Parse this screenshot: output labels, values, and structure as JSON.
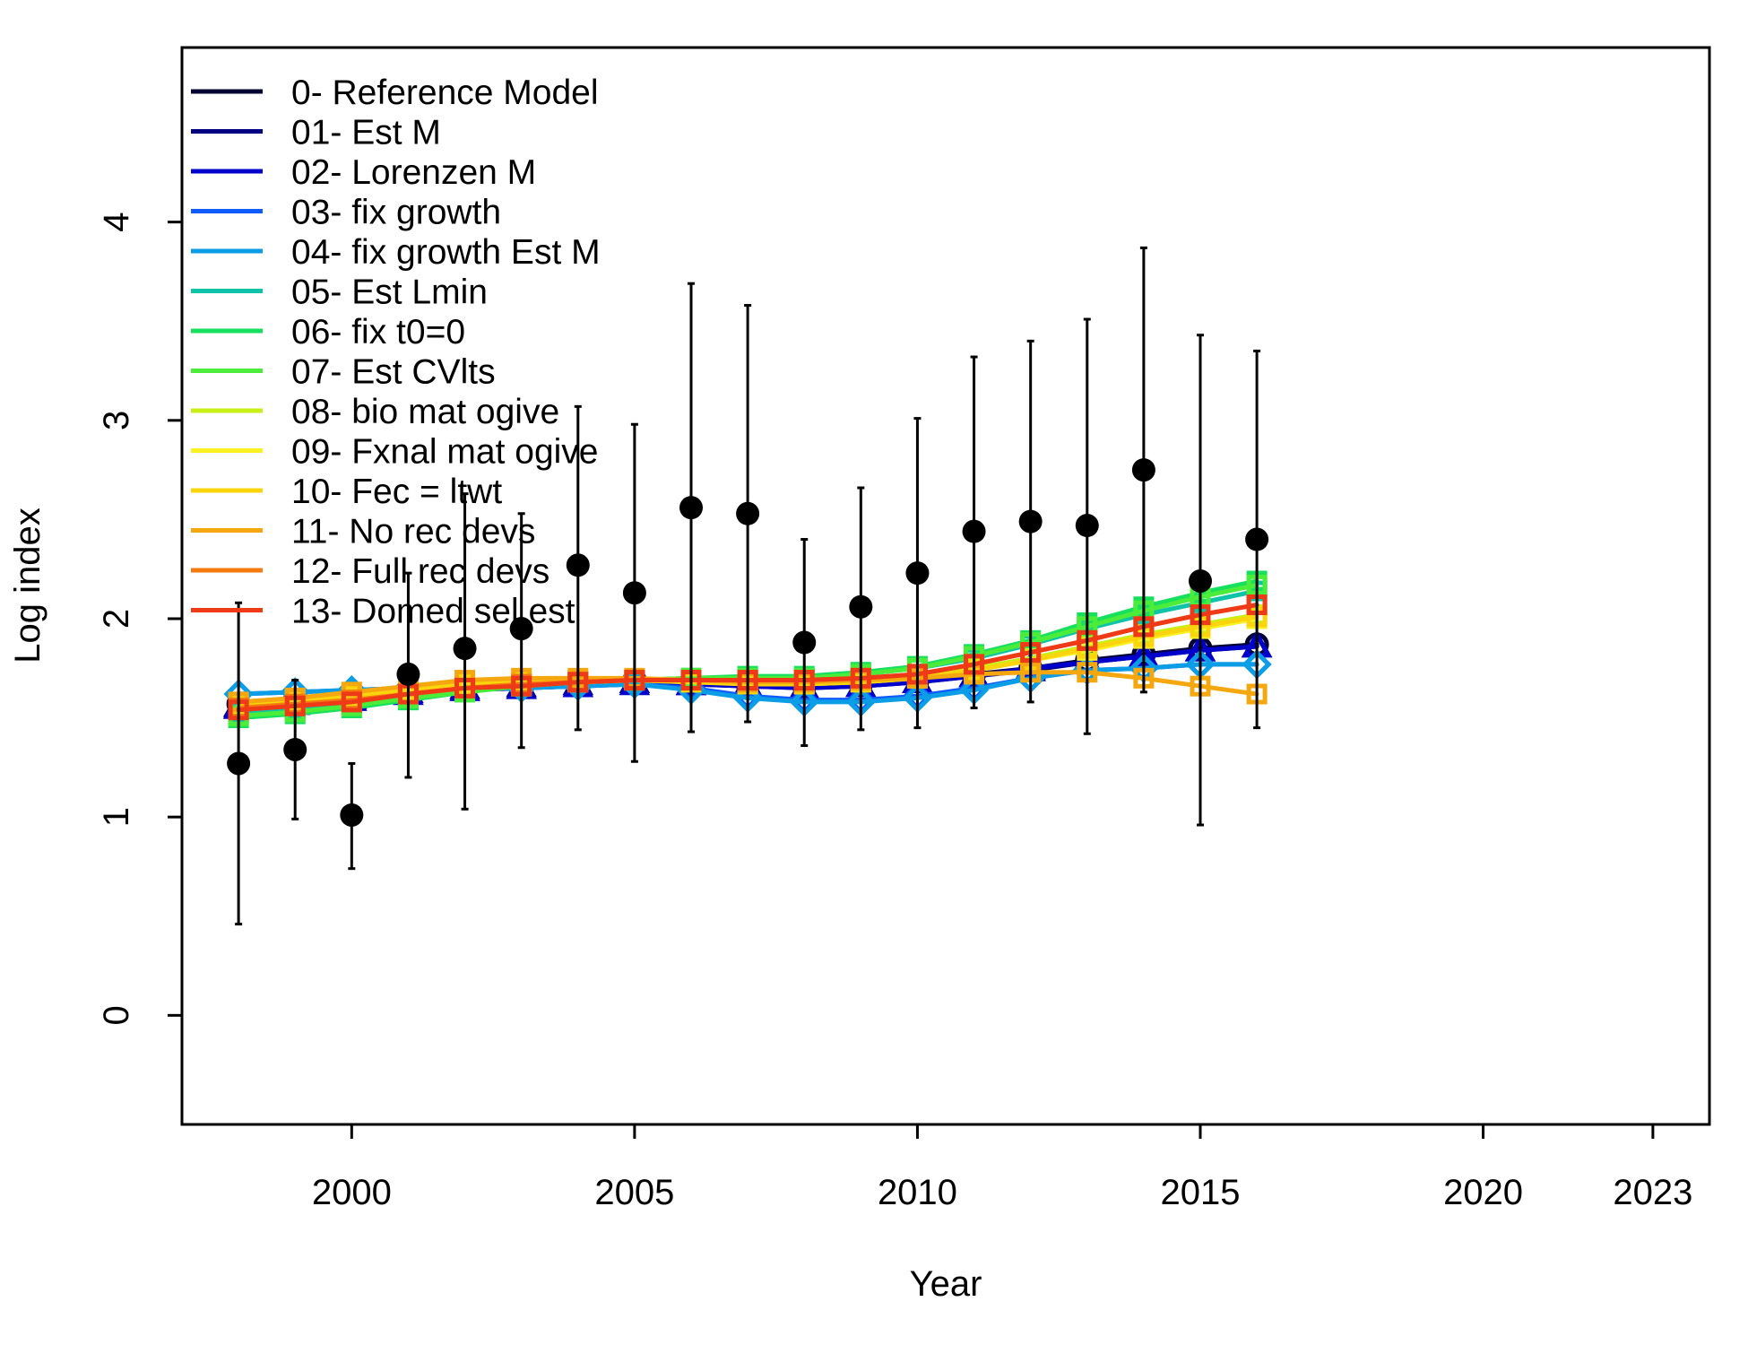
{
  "chart_data": {
    "type": "line",
    "xlabel": "Year",
    "ylabel": "Log index",
    "xlim": [
      1997.0,
      2024.0
    ],
    "ylim": [
      -0.55,
      4.88
    ],
    "x_ticks": [
      2000,
      2005,
      2010,
      2015,
      2020,
      2023
    ],
    "y_ticks": [
      0,
      1,
      2,
      3,
      4
    ],
    "grid": false,
    "legend_position": "top-left",
    "observed": {
      "x": [
        1998,
        1999,
        2000,
        2001,
        2002,
        2003,
        2004,
        2005,
        2006,
        2007,
        2008,
        2009,
        2010,
        2011,
        2012,
        2013,
        2014,
        2015,
        2016
      ],
      "y": [
        1.27,
        1.34,
        1.01,
        1.72,
        1.85,
        1.95,
        2.27,
        2.13,
        2.56,
        2.53,
        1.88,
        2.06,
        2.23,
        2.44,
        2.49,
        2.47,
        2.75,
        2.19,
        2.4
      ],
      "lower": [
        0.46,
        0.99,
        0.74,
        1.2,
        1.04,
        1.35,
        1.44,
        1.28,
        1.43,
        1.48,
        1.36,
        1.44,
        1.45,
        1.55,
        1.58,
        1.42,
        1.63,
        0.96,
        1.45
      ],
      "upper": [
        2.08,
        1.69,
        1.27,
        2.23,
        2.63,
        2.53,
        3.07,
        2.98,
        3.69,
        3.58,
        2.4,
        2.66,
        3.01,
        3.32,
        3.4,
        3.51,
        3.87,
        3.43,
        3.35
      ],
      "color": "#000000"
    },
    "years": [
      1998,
      1999,
      2000,
      2001,
      2002,
      2003,
      2004,
      2005,
      2006,
      2007,
      2008,
      2009,
      2010,
      2011,
      2012,
      2013,
      2014,
      2015,
      2016
    ],
    "series": [
      {
        "name": "0- Reference Model",
        "color": "#000033",
        "marker": "circle",
        "values": [
          1.57,
          1.59,
          1.61,
          1.64,
          1.66,
          1.67,
          1.68,
          1.69,
          1.68,
          1.67,
          1.66,
          1.67,
          1.69,
          1.72,
          1.75,
          1.79,
          1.82,
          1.85,
          1.87
        ]
      },
      {
        "name": "01- Est M",
        "color": "#000080",
        "marker": "triangle",
        "values": [
          1.56,
          1.58,
          1.6,
          1.63,
          1.65,
          1.66,
          1.67,
          1.68,
          1.67,
          1.66,
          1.65,
          1.66,
          1.68,
          1.71,
          1.74,
          1.78,
          1.81,
          1.84,
          1.86
        ]
      },
      {
        "name": "02- Lorenzen M",
        "color": "#0000CC",
        "marker": "triangle",
        "values": [
          1.55,
          1.57,
          1.59,
          1.62,
          1.64,
          1.65,
          1.66,
          1.67,
          1.67,
          1.66,
          1.65,
          1.66,
          1.68,
          1.71,
          1.75,
          1.78,
          1.81,
          1.84,
          1.86
        ]
      },
      {
        "name": "03- fix growth",
        "color": "#0F5BFF",
        "marker": "diamond",
        "values": [
          1.62,
          1.63,
          1.64,
          1.65,
          1.65,
          1.65,
          1.66,
          1.67,
          1.65,
          1.61,
          1.59,
          1.59,
          1.61,
          1.65,
          1.7,
          1.74,
          1.75,
          1.77,
          1.77
        ]
      },
      {
        "name": "04- fix growth Est M",
        "color": "#0B9EE6",
        "marker": "diamond",
        "values": [
          1.62,
          1.63,
          1.64,
          1.65,
          1.65,
          1.65,
          1.66,
          1.67,
          1.64,
          1.6,
          1.58,
          1.58,
          1.6,
          1.64,
          1.7,
          1.74,
          1.75,
          1.77,
          1.77
        ]
      },
      {
        "name": "05- Est Lmin",
        "color": "#0EC3A8",
        "marker": "square",
        "values": [
          1.52,
          1.54,
          1.57,
          1.61,
          1.64,
          1.66,
          1.68,
          1.69,
          1.7,
          1.7,
          1.7,
          1.72,
          1.75,
          1.8,
          1.87,
          1.95,
          2.02,
          2.08,
          2.14
        ]
      },
      {
        "name": "06- fix t0=0",
        "color": "#17E05E",
        "marker": "square",
        "values": [
          1.5,
          1.52,
          1.55,
          1.59,
          1.63,
          1.66,
          1.68,
          1.69,
          1.7,
          1.71,
          1.71,
          1.73,
          1.76,
          1.82,
          1.89,
          1.98,
          2.06,
          2.13,
          2.19
        ]
      },
      {
        "name": "07- Est CVlts",
        "color": "#4CEC3A",
        "marker": "square",
        "values": [
          1.51,
          1.53,
          1.56,
          1.6,
          1.63,
          1.66,
          1.68,
          1.69,
          1.7,
          1.7,
          1.7,
          1.72,
          1.75,
          1.81,
          1.88,
          1.96,
          2.04,
          2.11,
          2.17
        ]
      },
      {
        "name": "08- bio mat ogive",
        "color": "#C9F016",
        "marker": "square",
        "values": [
          1.55,
          1.57,
          1.59,
          1.62,
          1.65,
          1.67,
          1.68,
          1.69,
          1.69,
          1.68,
          1.68,
          1.69,
          1.71,
          1.75,
          1.8,
          1.86,
          1.92,
          1.97,
          2.02
        ]
      },
      {
        "name": "09- Fxnal mat ogive",
        "color": "#F9F122",
        "marker": "square",
        "values": [
          1.56,
          1.58,
          1.6,
          1.63,
          1.66,
          1.67,
          1.68,
          1.69,
          1.68,
          1.68,
          1.67,
          1.68,
          1.7,
          1.74,
          1.79,
          1.84,
          1.9,
          1.95,
          2.0
        ]
      },
      {
        "name": "10- Fec = ltwt",
        "color": "#FAD40C",
        "marker": "square",
        "values": [
          1.57,
          1.59,
          1.61,
          1.64,
          1.67,
          1.68,
          1.69,
          1.69,
          1.68,
          1.67,
          1.67,
          1.68,
          1.7,
          1.74,
          1.79,
          1.85,
          1.91,
          1.96,
          2.01
        ]
      },
      {
        "name": "11- No rec devs",
        "color": "#F5A70F",
        "marker": "square",
        "values": [
          1.58,
          1.6,
          1.63,
          1.66,
          1.69,
          1.7,
          1.7,
          1.7,
          1.69,
          1.68,
          1.68,
          1.69,
          1.7,
          1.72,
          1.73,
          1.73,
          1.7,
          1.66,
          1.62
        ]
      },
      {
        "name": "12- Full rec devs",
        "color": "#F57A0F",
        "marker": "square",
        "values": [
          1.55,
          1.57,
          1.59,
          1.62,
          1.65,
          1.67,
          1.68,
          1.69,
          1.69,
          1.69,
          1.69,
          1.7,
          1.72,
          1.77,
          1.83,
          1.89,
          1.96,
          2.02,
          2.07
        ]
      },
      {
        "name": "13- Domed sel est",
        "color": "#EE3A17",
        "marker": "square",
        "values": [
          1.54,
          1.56,
          1.58,
          1.62,
          1.65,
          1.66,
          1.68,
          1.69,
          1.69,
          1.69,
          1.69,
          1.7,
          1.72,
          1.77,
          1.83,
          1.89,
          1.96,
          2.02,
          2.07
        ]
      }
    ]
  }
}
